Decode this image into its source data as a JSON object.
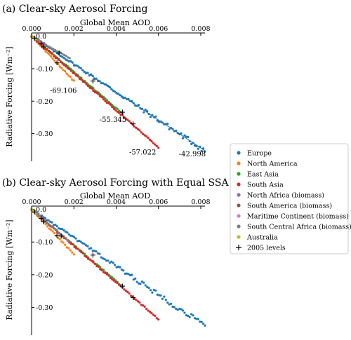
{
  "chart_data": [
    {
      "type": "scatter",
      "panel": "(a)",
      "title": "(a) Clear-sky Aerosol Forcing",
      "xlabel": "Global Mean AOD",
      "ylabel": "Radiative Forcing [Wm⁻²]",
      "xlim": [
        0,
        0.0082
      ],
      "ylim": [
        -0.385,
        0.01
      ],
      "xticks": [
        "0.000",
        "0.002",
        "0.004",
        "0.006",
        "0.008"
      ],
      "yticks": [
        "0.0",
        "-0.10",
        "-0.20",
        "-0.30"
      ],
      "fits": true,
      "series": [
        {
          "name": "Europe",
          "color": "#1f77b4",
          "x_range": [
            0.0,
            0.0082
          ],
          "slope": -42.998
        },
        {
          "name": "North America",
          "color": "#ff7f0e",
          "x_range": [
            0.0,
            0.002
          ],
          "slope": -69.106
        },
        {
          "name": "East Asia",
          "color": "#2ca02c",
          "x_range": [
            0.0,
            0.0043
          ],
          "slope": -55.345
        },
        {
          "name": "South Asia",
          "color": "#d62728",
          "x_range": [
            0.0,
            0.006
          ],
          "slope": -57.022
        },
        {
          "name": "North Africa (biomass)",
          "color": "#9467bd",
          "x_range": [
            0.0,
            0.0006
          ],
          "slope": -45
        },
        {
          "name": "South America (biomass)",
          "color": "#8c564b",
          "x_range": [
            0.0,
            0.0004
          ],
          "slope": -45
        },
        {
          "name": "Maritime Continent (biomass)",
          "color": "#e377c2",
          "x_range": [
            0.0,
            0.0005
          ],
          "slope": -42
        },
        {
          "name": "South Central Africa (biomass)",
          "color": "#7f7f7f",
          "x_range": [
            0.0,
            0.0018
          ],
          "slope": -38
        },
        {
          "name": "Australia",
          "color": "#bcbd22",
          "x_range": [
            0.0,
            0.0002
          ],
          "slope": -40
        }
      ],
      "levels_2005": [
        {
          "x": 0.00014,
          "y": -0.006
        },
        {
          "x": 0.00045,
          "y": -0.022
        },
        {
          "x": 0.00055,
          "y": -0.033
        },
        {
          "x": 0.0013,
          "y": -0.052
        },
        {
          "x": 0.0012,
          "y": -0.082
        },
        {
          "x": 0.0029,
          "y": -0.138
        },
        {
          "x": 0.0043,
          "y": -0.234
        },
        {
          "x": 0.0048,
          "y": -0.27
        }
      ],
      "annotations": [
        {
          "text": "-69.106",
          "x": 0.0015,
          "y": -0.175
        },
        {
          "text": "-55.345",
          "x": 0.00385,
          "y": -0.264
        },
        {
          "text": "-57.022",
          "x": 0.00525,
          "y": -0.365
        },
        {
          "text": "-42.998",
          "x": 0.0076,
          "y": -0.37
        }
      ]
    },
    {
      "type": "scatter",
      "panel": "(b)",
      "title": "(b) Clear-sky Aerosol Forcing with Equal SSA",
      "xlabel": "Global Mean AOD",
      "ylabel": "Radiative Forcing [Wm⁻²]",
      "xlim": [
        0,
        0.0082
      ],
      "ylim": [
        -0.385,
        0.01
      ],
      "xticks": [
        "0.000",
        "0.002",
        "0.004",
        "0.006",
        "0.008"
      ],
      "yticks": [
        "0.0",
        "-0.10",
        "-0.20",
        "-0.30"
      ],
      "fits": false,
      "series": [
        {
          "name": "Europe",
          "color": "#1f77b4",
          "x_range": [
            0.0,
            0.0082
          ],
          "slope": -43.5
        },
        {
          "name": "North America",
          "color": "#ff7f0e",
          "x_range": [
            0.0,
            0.002
          ],
          "slope": -69
        },
        {
          "name": "East Asia",
          "color": "#2ca02c",
          "x_range": [
            0.0,
            0.0043
          ],
          "slope": -55
        },
        {
          "name": "South Asia",
          "color": "#d62728",
          "x_range": [
            0.0,
            0.006
          ],
          "slope": -56
        },
        {
          "name": "North Africa (biomass)",
          "color": "#9467bd",
          "x_range": [
            0.0,
            0.0006
          ],
          "slope": -60
        },
        {
          "name": "South America (biomass)",
          "color": "#8c564b",
          "x_range": [
            0.0,
            0.0004
          ],
          "slope": -60
        },
        {
          "name": "Maritime Continent (biomass)",
          "color": "#e377c2",
          "x_range": [
            0.0,
            0.0005
          ],
          "slope": -62
        },
        {
          "name": "South Central Africa (biomass)",
          "color": "#7f7f7f",
          "x_range": [
            0.0,
            0.0018
          ],
          "slope": -55
        },
        {
          "name": "Australia",
          "color": "#bcbd22",
          "x_range": [
            0.0,
            0.0002
          ],
          "slope": -60
        }
      ],
      "levels_2005": [
        {
          "x": 0.00014,
          "y": -0.008
        },
        {
          "x": 0.00045,
          "y": -0.028
        },
        {
          "x": 0.00055,
          "y": -0.038
        },
        {
          "x": 0.0012,
          "y": -0.08
        },
        {
          "x": 0.0014,
          "y": -0.082
        },
        {
          "x": 0.0029,
          "y": -0.14
        },
        {
          "x": 0.0043,
          "y": -0.235
        },
        {
          "x": 0.0048,
          "y": -0.27
        }
      ]
    }
  ],
  "legend": {
    "entries": [
      {
        "label": "Europe",
        "color": "#1f77b4",
        "marker": "dot"
      },
      {
        "label": "North America",
        "color": "#ff7f0e",
        "marker": "dot"
      },
      {
        "label": "East Asia",
        "color": "#2ca02c",
        "marker": "dot"
      },
      {
        "label": "South Asia",
        "color": "#d62728",
        "marker": "dot"
      },
      {
        "label": "North Africa (biomass)",
        "color": "#9467bd",
        "marker": "dot"
      },
      {
        "label": "South America (biomass)",
        "color": "#8c564b",
        "marker": "dot"
      },
      {
        "label": "Maritime Continent (biomass)",
        "color": "#e377c2",
        "marker": "dot"
      },
      {
        "label": "South Central Africa (biomass)",
        "color": "#7f7f7f",
        "marker": "dot"
      },
      {
        "label": "Australia",
        "color": "#bcbd22",
        "marker": "dot"
      },
      {
        "label": "2005 levels",
        "color": "#000000",
        "marker": "plus"
      }
    ]
  }
}
